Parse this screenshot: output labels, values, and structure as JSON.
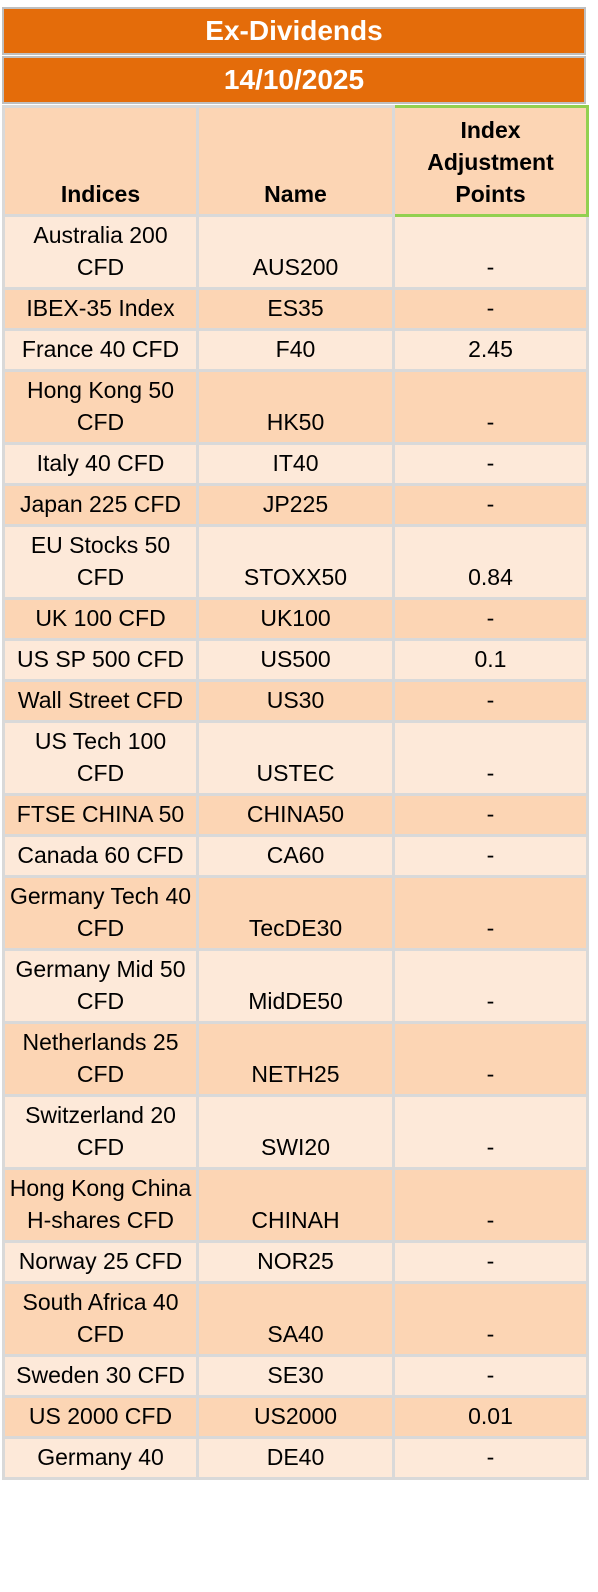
{
  "title": "Ex-Dividends",
  "date": "14/10/2025",
  "columns": [
    "Indices",
    "Name",
    "Index Adjustment Points"
  ],
  "rows": [
    {
      "index": "Australia 200 CFD",
      "name": "AUS200",
      "points": "-"
    },
    {
      "index": "IBEX-35 Index",
      "name": "ES35",
      "points": "-"
    },
    {
      "index": "France 40 CFD",
      "name": "F40",
      "points": "2.45"
    },
    {
      "index": "Hong Kong 50 CFD",
      "name": "HK50",
      "points": "-"
    },
    {
      "index": "Italy 40 CFD",
      "name": "IT40",
      "points": "-"
    },
    {
      "index": "Japan 225 CFD",
      "name": "JP225",
      "points": "-"
    },
    {
      "index": "EU Stocks 50 CFD",
      "name": "STOXX50",
      "points": "0.84"
    },
    {
      "index": "UK 100 CFD",
      "name": "UK100",
      "points": "-"
    },
    {
      "index": "US SP 500 CFD",
      "name": "US500",
      "points": "0.1"
    },
    {
      "index": "Wall Street CFD",
      "name": "US30",
      "points": "-"
    },
    {
      "index": "US Tech 100 CFD",
      "name": "USTEC",
      "points": "-"
    },
    {
      "index": "FTSE CHINA 50",
      "name": "CHINA50",
      "points": "-"
    },
    {
      "index": "Canada 60 CFD",
      "name": "CA60",
      "points": "-"
    },
    {
      "index": "Germany Tech 40 CFD",
      "name": "TecDE30",
      "points": "-"
    },
    {
      "index": "Germany Mid 50 CFD",
      "name": "MidDE50",
      "points": "-"
    },
    {
      "index": "Netherlands 25 CFD",
      "name": "NETH25",
      "points": "-"
    },
    {
      "index": "Switzerland 20 CFD",
      "name": "SWI20",
      "points": "-"
    },
    {
      "index": "Hong Kong China H-shares CFD",
      "name": "CHINAH",
      "points": "-"
    },
    {
      "index": "Norway 25 CFD",
      "name": "NOR25",
      "points": "-"
    },
    {
      "index": "South Africa 40 CFD",
      "name": "SA40",
      "points": "-"
    },
    {
      "index": "Sweden 30 CFD",
      "name": "SE30",
      "points": "-"
    },
    {
      "index": "US 2000 CFD",
      "name": "US2000",
      "points": "0.01"
    },
    {
      "index": "Germany 40",
      "name": "DE40",
      "points": "-"
    }
  ]
}
